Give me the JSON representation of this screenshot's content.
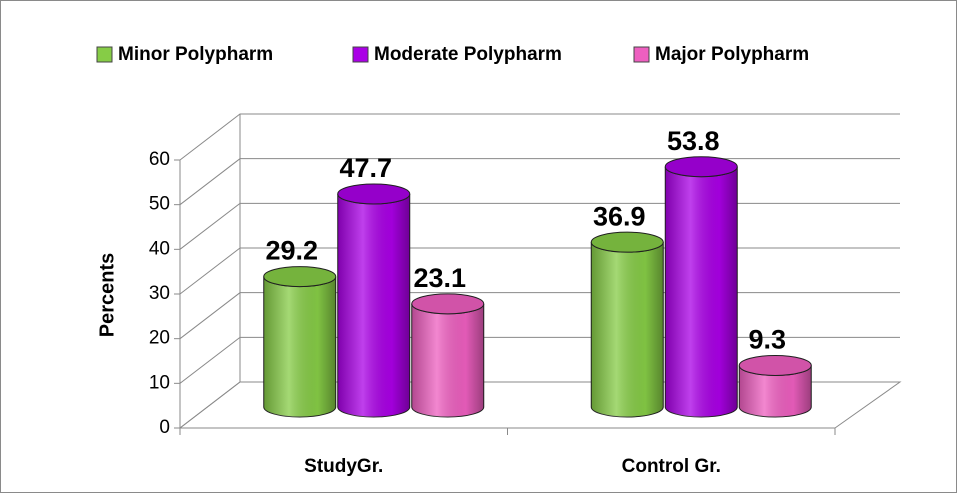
{
  "chart_data": {
    "type": "bar",
    "categories": [
      "StudyGr.",
      "Control Gr."
    ],
    "series": [
      {
        "name": "Minor Polypharm",
        "color": "#86cc46",
        "values": [
          29.2,
          36.9
        ]
      },
      {
        "name": "Moderate Polypharm",
        "color": "#aa00e6",
        "values": [
          47.7,
          53.8
        ]
      },
      {
        "name": "Major Polypharm",
        "color": "#ee5fc0",
        "values": [
          23.1,
          9.3
        ]
      }
    ],
    "y_label": "Percents",
    "ylim": [
      0,
      60
    ],
    "yticks": [
      0,
      10,
      20,
      30,
      40,
      50,
      60
    ],
    "grid": true,
    "legend": "top"
  }
}
